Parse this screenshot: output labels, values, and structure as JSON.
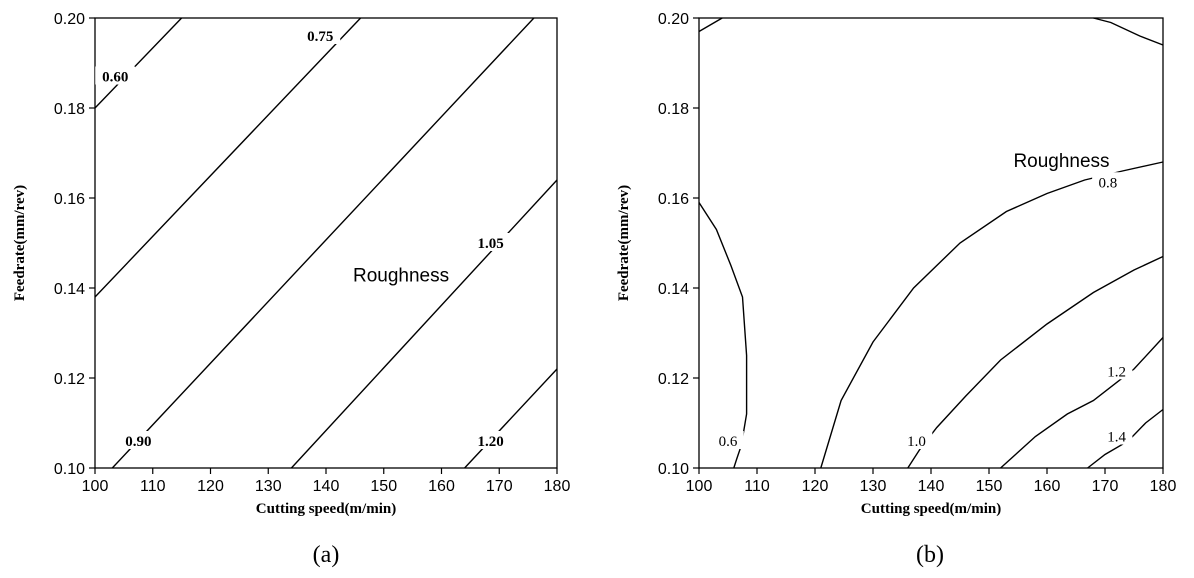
{
  "chart_data": [
    {
      "id": "a",
      "type": "contour",
      "caption": "(a)",
      "xlabel": "Cutting speed(m/min)",
      "ylabel": "Feedrate(mm/rev)",
      "xlim": [
        100,
        180
      ],
      "ylim": [
        0.1,
        0.2
      ],
      "xticks": [
        "100",
        "110",
        "120",
        "130",
        "140",
        "150",
        "160",
        "170",
        "180"
      ],
      "yticks": [
        "0.10",
        "0.12",
        "0.14",
        "0.16",
        "0.18",
        "0.20"
      ],
      "annotation": {
        "text": "Roughness",
        "x": 153,
        "y": 0.143
      },
      "label_style": "bold",
      "contours": [
        {
          "level": "0.60",
          "points": [
            [
              100,
              0.18
            ],
            [
              115,
              0.2
            ]
          ],
          "label_at": [
            103.5,
            0.187
          ]
        },
        {
          "level": "0.75",
          "points": [
            [
              100,
              0.138
            ],
            [
              146,
              0.2
            ]
          ],
          "label_at": [
            139,
            0.196
          ]
        },
        {
          "level": "0.90",
          "points": [
            [
              103,
              0.1
            ],
            [
              176,
              0.2
            ]
          ],
          "label_at": [
            107.5,
            0.106
          ]
        },
        {
          "level": "1.05",
          "points": [
            [
              134,
              0.1
            ],
            [
              180,
              0.164
            ]
          ],
          "label_at": [
            168.5,
            0.15
          ]
        },
        {
          "level": "1.20",
          "points": [
            [
              164,
              0.1
            ],
            [
              180,
              0.122
            ]
          ],
          "label_at": [
            168.5,
            0.106
          ]
        }
      ]
    },
    {
      "id": "b",
      "type": "contour",
      "caption": "(b)",
      "xlabel": "Cutting speed(m/min)",
      "ylabel": "Feedrate(mm/rev)",
      "xlim": [
        100,
        180
      ],
      "ylim": [
        0.1,
        0.2
      ],
      "xticks": [
        "100",
        "110",
        "120",
        "130",
        "140",
        "150",
        "160",
        "170",
        "180"
      ],
      "yticks": [
        "0.10",
        "0.12",
        "0.14",
        "0.16",
        "0.18",
        "0.20"
      ],
      "annotation": {
        "text": "Roughness",
        "x": 162.5,
        "y": 0.1685
      },
      "label_style": "normal",
      "contours": [
        {
          "level": "",
          "points": [
            [
              100,
              0.197
            ],
            [
              104,
              0.2
            ]
          ]
        },
        {
          "level": "",
          "points": [
            [
              168,
              0.2
            ],
            [
              171,
              0.199
            ],
            [
              176,
              0.196
            ],
            [
              180,
              0.194
            ]
          ]
        },
        {
          "level": "0.6",
          "points": [
            [
              100,
              0.159
            ],
            [
              103,
              0.153
            ],
            [
              105.5,
              0.145
            ],
            [
              107.5,
              0.138
            ],
            [
              108.2,
              0.125
            ],
            [
              108.2,
              0.112
            ],
            [
              107.3,
              0.105
            ],
            [
              106.5,
              0.102
            ],
            [
              106,
              0.1
            ]
          ],
          "label_at": [
            105,
            0.106
          ]
        },
        {
          "level": "0.8",
          "points": [
            [
              121,
              0.1
            ],
            [
              124.5,
              0.115
            ],
            [
              130,
              0.128
            ],
            [
              137,
              0.14
            ],
            [
              145,
              0.15
            ],
            [
              153,
              0.157
            ],
            [
              160,
              0.161
            ],
            [
              166.5,
              0.164
            ],
            [
              173,
              0.166
            ],
            [
              180,
              0.168
            ]
          ],
          "label_at": [
            170.5,
            0.1635
          ]
        },
        {
          "level": "1.0",
          "points": [
            [
              136,
              0.1
            ],
            [
              138,
              0.104
            ],
            [
              141,
              0.109
            ],
            [
              146,
              0.116
            ],
            [
              152,
              0.124
            ],
            [
              160,
              0.132
            ],
            [
              168,
              0.139
            ],
            [
              175,
              0.144
            ],
            [
              180,
              0.147
            ]
          ],
          "label_at": [
            137.5,
            0.106
          ]
        },
        {
          "level": "1.2",
          "points": [
            [
              152,
              0.1
            ],
            [
              158,
              0.107
            ],
            [
              163.5,
              0.112
            ],
            [
              168,
              0.115
            ],
            [
              175,
              0.122
            ],
            [
              180,
              0.129
            ]
          ],
          "label_at": [
            172,
            0.1215
          ]
        },
        {
          "level": "1.4",
          "points": [
            [
              167,
              0.1
            ],
            [
              170,
              0.103
            ],
            [
              174,
              0.106
            ],
            [
              177,
              0.11
            ],
            [
              180,
              0.113
            ]
          ],
          "label_at": [
            172,
            0.107
          ]
        }
      ]
    }
  ]
}
